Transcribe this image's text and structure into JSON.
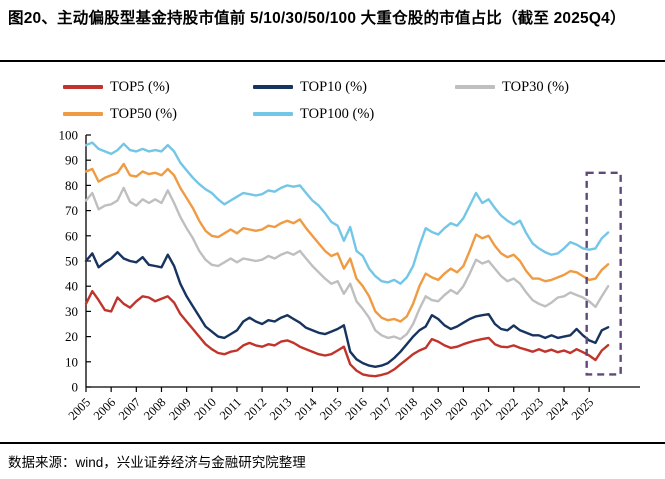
{
  "title": "图20、主动偏股型基金持股市值前 5/10/30/50/100 大重仓股的市值占比（截至 2025Q4）",
  "source": "数据来源：wind，兴业证券经济与金融研究院整理",
  "legend": {
    "items": [
      {
        "label": "TOP5 (%)",
        "color": "#C0342B"
      },
      {
        "label": "TOP10 (%)",
        "color": "#17335F"
      },
      {
        "label": "TOP30 (%)",
        "color": "#BFBFBF"
      },
      {
        "label": "TOP50 (%)",
        "color": "#EF9B43"
      },
      {
        "label": "TOP100 (%)",
        "color": "#74C6E7"
      }
    ]
  },
  "chart_data": {
    "type": "line",
    "title": "主动偏股型基金持股市值前 5/10/30/50/100 大重仓股的市值占比",
    "xlabel": "",
    "ylabel": "",
    "ylim": [
      0,
      100
    ],
    "y_ticks": [
      0,
      10,
      20,
      30,
      40,
      50,
      60,
      70,
      80,
      90,
      100
    ],
    "x_tick_labels": [
      "2005",
      "2006",
      "2007",
      "2008",
      "2009",
      "2010",
      "2011",
      "2012",
      "2013",
      "2014",
      "2015",
      "2016",
      "2017",
      "2018",
      "2019",
      "2020",
      "2021",
      "2022",
      "2023",
      "2024",
      "2025"
    ],
    "x_frequency": "quarterly",
    "grid": false,
    "legend_position": "top",
    "highlight_box": {
      "meaning": "2025 quarters highlighted",
      "color": "#5F497A",
      "x_from_quarter": 79.6,
      "x_to_quarter": 85.0,
      "value_from": 5,
      "value_to": 85
    },
    "series": [
      {
        "name": "TOP5 (%)",
        "color": "#C0342B",
        "values": [
          33,
          38,
          34.5,
          30.5,
          30,
          35.5,
          33,
          31.5,
          34,
          36,
          35.5,
          34,
          35,
          36,
          33.5,
          29,
          26,
          23,
          20,
          17,
          15,
          13.5,
          13,
          14,
          14.5,
          16.5,
          17.5,
          16.5,
          16,
          17,
          16.5,
          18,
          18.5,
          17.5,
          16,
          15,
          14,
          13,
          12.5,
          13,
          14.5,
          16,
          9,
          6.5,
          5,
          4.5,
          4.3,
          4.8,
          5.5,
          7,
          9,
          11,
          13,
          14.5,
          15.5,
          19,
          18,
          16.5,
          15.5,
          16,
          17,
          17.8,
          18.5,
          19,
          19.5,
          17,
          16,
          15.8,
          16.5,
          15.5,
          14.8,
          14,
          15,
          14,
          14.8,
          13.8,
          14.5,
          13.5,
          15,
          13.8,
          12.5,
          10.7,
          14.5,
          16.6
        ]
      },
      {
        "name": "TOP10 (%)",
        "color": "#17335F",
        "values": [
          50,
          53,
          47.5,
          49.5,
          51,
          53.5,
          51,
          50,
          49.5,
          51.5,
          48.5,
          48,
          47.5,
          52.5,
          48,
          41,
          36,
          32,
          28,
          24,
          22,
          20,
          19.5,
          21,
          22.5,
          26,
          27.5,
          26,
          25,
          26.5,
          26,
          27.5,
          28.5,
          27,
          25.5,
          23.5,
          22.5,
          21.5,
          21,
          22,
          23,
          24.5,
          14,
          11,
          9.5,
          8.5,
          8,
          8.5,
          9.5,
          11.5,
          14,
          17,
          20,
          22.5,
          24,
          28.5,
          27,
          24.5,
          23,
          24,
          25.5,
          27,
          28,
          28.5,
          28.9,
          25,
          23,
          22.5,
          24.4,
          22.5,
          21.5,
          20.5,
          20.5,
          19.5,
          20.5,
          19.5,
          20,
          20.5,
          23,
          20.5,
          18.5,
          17.5,
          22.5,
          23.7
        ]
      },
      {
        "name": "TOP30 (%)",
        "color": "#BFBFBF",
        "values": [
          74,
          77,
          70.5,
          72,
          72.5,
          74,
          79,
          73.5,
          72,
          74.5,
          73,
          74.5,
          73,
          78,
          73,
          67.5,
          63,
          59,
          54,
          50.5,
          48.5,
          48,
          49.5,
          51,
          49.5,
          51,
          50.5,
          50,
          50.5,
          52,
          51,
          52.5,
          53.5,
          52.5,
          54,
          51,
          48,
          45.5,
          43,
          41,
          42,
          37,
          41,
          34,
          31,
          27.5,
          22.5,
          20.5,
          19.5,
          20,
          19,
          21,
          25,
          31,
          36,
          34.5,
          34,
          36.5,
          38.5,
          37,
          40,
          45,
          50.5,
          49,
          50,
          47,
          44,
          42,
          43,
          41,
          37.5,
          34.5,
          33,
          32,
          33.5,
          35.5,
          36,
          37.5,
          36.5,
          35.5,
          34,
          31.8,
          36,
          40
        ]
      },
      {
        "name": "TOP50 (%)",
        "color": "#EF9B43",
        "values": [
          85.5,
          86.5,
          81.5,
          83,
          84,
          85,
          88.5,
          84,
          83.5,
          85.5,
          84.5,
          85,
          84,
          86.5,
          84,
          79,
          75,
          71,
          66,
          62,
          60,
          59.5,
          61,
          62.5,
          61,
          63,
          62.5,
          62,
          62.5,
          64,
          63.5,
          65,
          66,
          65,
          66.5,
          63,
          60,
          57,
          54,
          52,
          53,
          47,
          51,
          43,
          40,
          36,
          30,
          27.5,
          26.5,
          27,
          26,
          28,
          33,
          40,
          45,
          43.5,
          42.5,
          45,
          47,
          45.5,
          48,
          54,
          60.5,
          59,
          60,
          56,
          53,
          51.5,
          52.5,
          50,
          46,
          43,
          43,
          42,
          42.5,
          43.5,
          44.5,
          46,
          45.5,
          44,
          42.5,
          43,
          46.5,
          48.7
        ]
      },
      {
        "name": "TOP100 (%)",
        "color": "#74C6E7",
        "values": [
          96,
          97,
          94.5,
          93.5,
          92.5,
          94,
          96.5,
          94,
          93.5,
          94.5,
          93.5,
          94,
          93.5,
          96,
          93.5,
          89,
          86,
          83,
          80.5,
          78.5,
          77,
          74.5,
          72.5,
          74,
          75.5,
          77,
          76.5,
          76,
          76.5,
          78,
          77.5,
          79,
          80,
          79.5,
          80,
          77,
          74,
          72,
          69,
          65.5,
          64,
          58,
          63.5,
          54,
          52,
          47,
          44,
          42,
          41.5,
          42.5,
          41,
          43.5,
          48,
          56,
          63,
          61.5,
          60.5,
          63,
          65,
          64,
          67,
          72,
          77,
          73,
          74.5,
          71,
          68,
          66,
          64.5,
          66,
          61,
          57,
          55,
          53.5,
          52.5,
          53,
          55,
          57.5,
          56.5,
          55,
          54.5,
          55,
          59,
          61.3
        ]
      }
    ]
  }
}
